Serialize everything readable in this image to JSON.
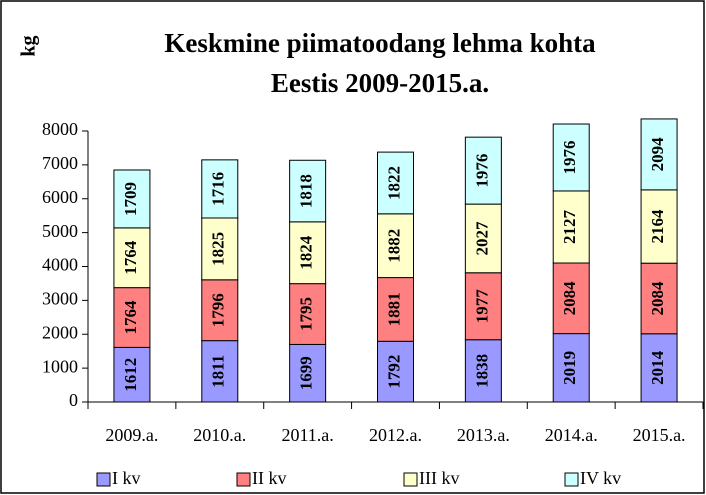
{
  "chart_data": {
    "type": "stacked_bar",
    "title": [
      "Keskmine piimatoodang lehma kohta",
      "Eestis 2009-2015.a."
    ],
    "y_label": "kg",
    "categories": [
      "2009.a.",
      "2010.a.",
      "2011.a.",
      "2012.a.",
      "2013.a.",
      "2014.a.",
      "2015.a."
    ],
    "series": [
      {
        "name": "I kv",
        "color": "#9999ff",
        "values": [
          1612,
          1811,
          1699,
          1792,
          1838,
          2019,
          2014
        ]
      },
      {
        "name": "II kv",
        "color": "#ff8080",
        "values": [
          1764,
          1796,
          1795,
          1881,
          1977,
          2084,
          2084
        ]
      },
      {
        "name": "III kv",
        "color": "#ffffcc",
        "values": [
          1764,
          1825,
          1824,
          1882,
          2027,
          2127,
          2164
        ]
      },
      {
        "name": "IV kv",
        "color": "#ccffff",
        "values": [
          1709,
          1716,
          1818,
          1822,
          1976,
          1976,
          2094
        ]
      }
    ],
    "ylim": [
      0,
      8000
    ],
    "yticks": [
      0,
      1000,
      2000,
      3000,
      4000,
      5000,
      6000,
      7000,
      8000
    ],
    "legend": "bottom"
  }
}
